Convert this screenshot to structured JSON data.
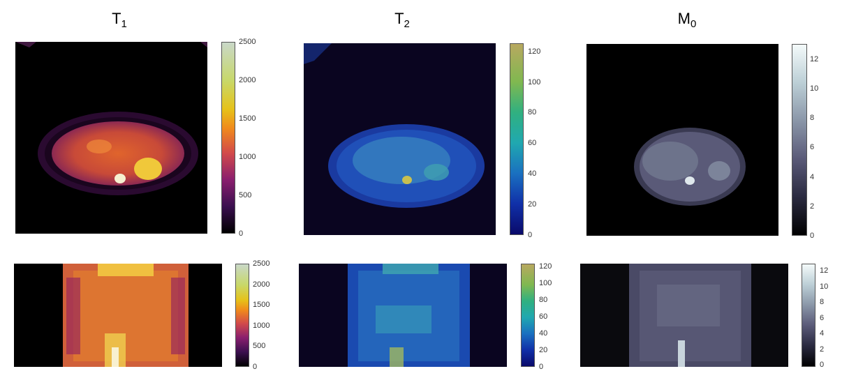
{
  "titles": [
    {
      "main": "T",
      "sub": "1"
    },
    {
      "main": "T",
      "sub": "2"
    },
    {
      "main": "M",
      "sub": "0"
    }
  ],
  "colorbars": {
    "t1_axial": [
      "2500",
      "2000",
      "1500",
      "1000",
      "500",
      "0"
    ],
    "t2_axial": [
      "120",
      "100",
      "80",
      "60",
      "40",
      "20",
      "0"
    ],
    "m0_axial": [
      "12",
      "10",
      "8",
      "6",
      "4",
      "2",
      "0"
    ],
    "t1_coronal": [
      "2500",
      "2000",
      "1500",
      "1000",
      "500",
      "0"
    ],
    "t2_coronal": [
      "120",
      "100",
      "80",
      "60",
      "40",
      "20",
      "0"
    ],
    "m0_coronal": [
      "12",
      "10",
      "8",
      "6",
      "4",
      "2",
      "0"
    ]
  },
  "colormaps": {
    "t1": [
      "#000000",
      "#3b0f4f",
      "#8a1f6e",
      "#d24a4a",
      "#f08a1c",
      "#e6c21a",
      "#c8d86a",
      "#c9d8c8"
    ],
    "t2": [
      "#0a0a6a",
      "#1030a8",
      "#1a70c0",
      "#20a8b0",
      "#30b080",
      "#80b850",
      "#b8a860"
    ],
    "m0": [
      "#000000",
      "#2a2a40",
      "#5a5a78",
      "#8a96a8",
      "#bccfd6",
      "#f4fafa"
    ]
  }
}
